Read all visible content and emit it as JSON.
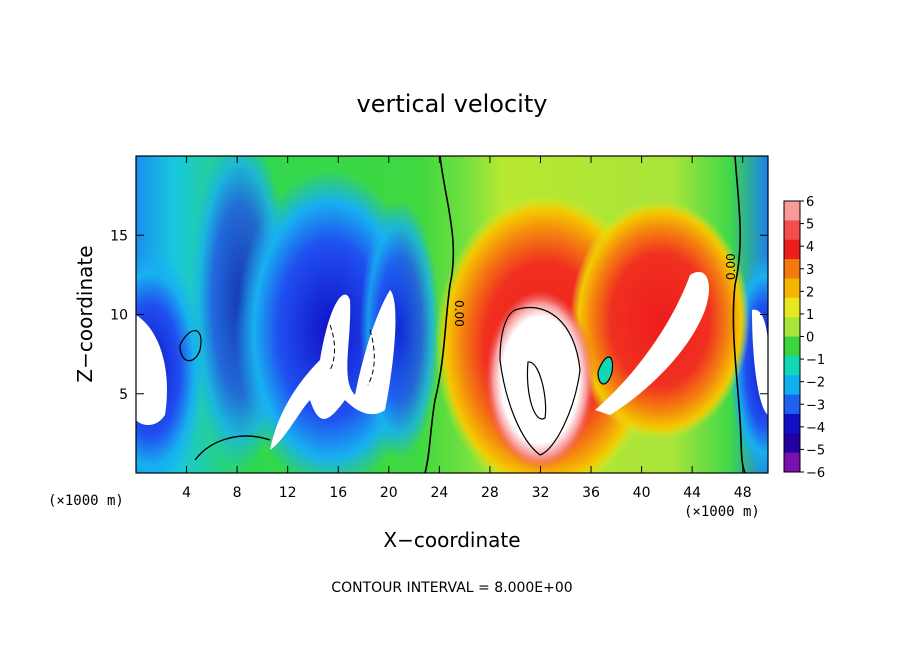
{
  "chart_data": {
    "type": "heatmap",
    "title": "vertical velocity",
    "xlabel": "X−coordinate",
    "ylabel": "Z−coordinate",
    "x_unit_left": "(×1000 m)",
    "x_unit_right": "(×1000 m)",
    "xlim": [
      0,
      50
    ],
    "ylim": [
      0,
      20
    ],
    "x_ticks": [
      4,
      8,
      12,
      16,
      20,
      24,
      28,
      32,
      36,
      40,
      44,
      48
    ],
    "y_ticks": [
      5,
      10,
      15
    ],
    "colorbar": {
      "ticks": [
        6,
        5,
        4,
        3,
        2,
        1,
        0,
        -1,
        -2,
        -3,
        -4,
        -5,
        -6
      ],
      "tick_labels": [
        "6",
        "5",
        "4",
        "3",
        "2",
        "1",
        "0",
        "−1",
        "−2",
        "−3",
        "−4",
        "−5",
        "−6"
      ],
      "colors": [
        "#f79a9a",
        "#f44d4d",
        "#ee1d1d",
        "#f47a10",
        "#f4b400",
        "#e8e820",
        "#a8e43a",
        "#3cd43c",
        "#10d8b4",
        "#10b0f0",
        "#2060f0",
        "#1010c8",
        "#2000a0",
        "#7a10b0"
      ]
    },
    "contour_labels": [
      "0.00",
      "0.00"
    ],
    "contour_interval": "CONTOUR INTERVAL = 8.000E+00",
    "features": [
      {
        "sign": "negative",
        "x": 18,
        "z": 9,
        "amplitude": -7
      },
      {
        "sign": "positive",
        "x": 32,
        "z": 8,
        "amplitude": 9
      },
      {
        "sign": "positive",
        "x": 43,
        "z": 11,
        "amplitude": 7
      }
    ]
  }
}
